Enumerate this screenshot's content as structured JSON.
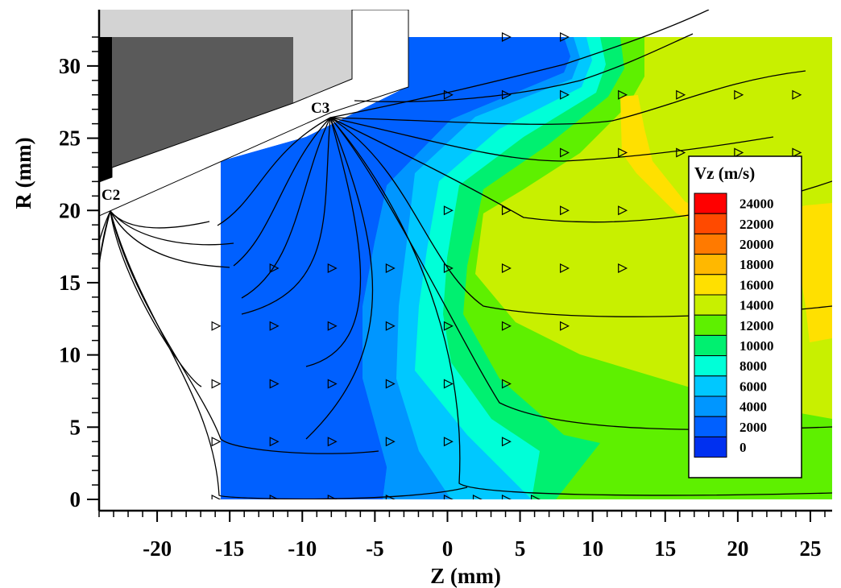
{
  "chart_data": {
    "type": "contour",
    "title": "",
    "xlabel": "Z (mm)",
    "ylabel": "R (mm)",
    "xlim": [
      -24,
      26.5
    ],
    "ylim": [
      0,
      32
    ],
    "xticks": [
      -20,
      -15,
      -10,
      -5,
      0,
      5,
      10,
      15,
      20,
      25
    ],
    "yticks": [
      0,
      5,
      10,
      15,
      20,
      25,
      30
    ],
    "grid": false,
    "legend": {
      "title": "Vz (m/s)",
      "placement": "right",
      "levels": [
        {
          "value": 24000,
          "color": "#ff0000"
        },
        {
          "value": 22000,
          "color": "#ff4a00"
        },
        {
          "value": 20000,
          "color": "#ff7a00"
        },
        {
          "value": 18000,
          "color": "#ffb800"
        },
        {
          "value": 16000,
          "color": "#ffe000"
        },
        {
          "value": 14000,
          "color": "#c8f000"
        },
        {
          "value": 12000,
          "color": "#5ef000"
        },
        {
          "value": 10000,
          "color": "#00f070"
        },
        {
          "value": 8000,
          "color": "#00ffd8"
        },
        {
          "value": 6000,
          "color": "#00c8ff"
        },
        {
          "value": 4000,
          "color": "#0096ff"
        },
        {
          "value": 2000,
          "color": "#0060ff"
        },
        {
          "value": 0,
          "color": "#0030f0"
        }
      ]
    },
    "annotations": [
      {
        "text": "C2",
        "z": -24,
        "r": 21
      },
      {
        "text": "C3",
        "z": -9.5,
        "r": 27.2
      }
    ],
    "velocity_vector_points": [
      [
        4,
        32
      ],
      [
        8,
        32
      ],
      [
        0,
        28
      ],
      [
        4,
        28
      ],
      [
        8,
        28
      ],
      [
        12,
        28
      ],
      [
        16,
        28
      ],
      [
        20,
        28
      ],
      [
        24,
        28
      ],
      [
        8,
        24
      ],
      [
        12,
        24
      ],
      [
        16,
        24
      ],
      [
        20,
        24
      ],
      [
        24,
        24
      ],
      [
        0,
        20
      ],
      [
        4,
        20
      ],
      [
        8,
        20
      ],
      [
        12,
        20
      ],
      [
        -12,
        16
      ],
      [
        -8,
        16
      ],
      [
        -4,
        16
      ],
      [
        0,
        16
      ],
      [
        4,
        16
      ],
      [
        8,
        16
      ],
      [
        12,
        16
      ],
      [
        -16,
        12
      ],
      [
        -12,
        12
      ],
      [
        -8,
        12
      ],
      [
        -4,
        12
      ],
      [
        0,
        12
      ],
      [
        4,
        12
      ],
      [
        8,
        12
      ],
      [
        -16,
        8
      ],
      [
        -12,
        8
      ],
      [
        -8,
        8
      ],
      [
        -4,
        8
      ],
      [
        0,
        8
      ],
      [
        4,
        8
      ],
      [
        -16,
        4
      ],
      [
        -12,
        4
      ],
      [
        -8,
        4
      ],
      [
        -4,
        4
      ],
      [
        0,
        4
      ],
      [
        4,
        4
      ],
      [
        -16,
        0
      ],
      [
        -12,
        0
      ],
      [
        -8,
        0
      ],
      [
        -4,
        0
      ],
      [
        0,
        0
      ],
      [
        2,
        0
      ],
      [
        4,
        0
      ],
      [
        6,
        0
      ]
    ]
  }
}
